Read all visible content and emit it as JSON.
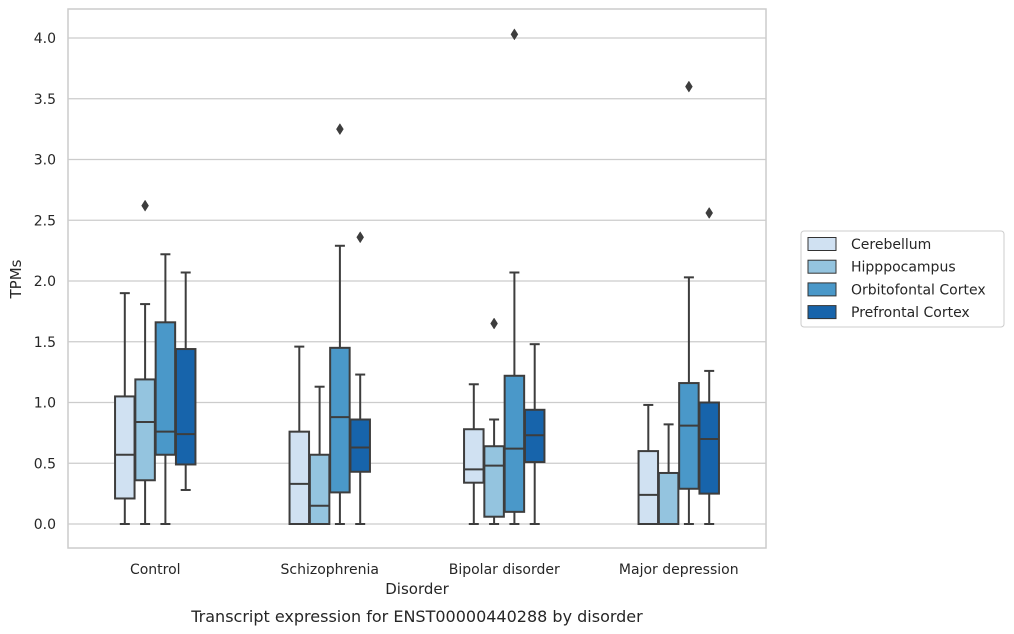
{
  "caption": "Transcript expression for ENST00000440288 by disorder",
  "chart_data": {
    "type": "box",
    "xlabel": "Disorder",
    "ylabel": "TPMs",
    "ylim": [
      -0.2,
      4.25
    ],
    "yticks": [
      "0.0",
      "0.5",
      "1.0",
      "1.5",
      "2.0",
      "2.5",
      "3.0",
      "3.5",
      "4.0"
    ],
    "grid": "horizontal",
    "legend_position": "right",
    "categories": [
      "Control",
      "Schizophrenia",
      "Bipolar disorder",
      "Major depression"
    ],
    "series": [
      {
        "name": "Cerebellum",
        "color": "#d0e1f2",
        "boxes": [
          {
            "whislo": 0.0,
            "q1": 0.21,
            "med": 0.57,
            "q3": 1.05,
            "whishi": 1.9,
            "fliers": []
          },
          {
            "whislo": 0.0,
            "q1": 0.0,
            "med": 0.33,
            "q3": 0.76,
            "whishi": 1.46,
            "fliers": []
          },
          {
            "whislo": 0.0,
            "q1": 0.34,
            "med": 0.45,
            "q3": 0.78,
            "whishi": 1.15,
            "fliers": []
          },
          {
            "whislo": 0.0,
            "q1": 0.0,
            "med": 0.24,
            "q3": 0.6,
            "whishi": 0.98,
            "fliers": []
          }
        ]
      },
      {
        "name": "Hipppocampus",
        "color": "#94c4df",
        "boxes": [
          {
            "whislo": 0.0,
            "q1": 0.36,
            "med": 0.84,
            "q3": 1.19,
            "whishi": 1.81,
            "fliers": [
              2.62
            ]
          },
          {
            "whislo": 0.0,
            "q1": 0.0,
            "med": 0.15,
            "q3": 0.57,
            "whishi": 1.13,
            "fliers": []
          },
          {
            "whislo": 0.0,
            "q1": 0.06,
            "med": 0.48,
            "q3": 0.64,
            "whishi": 0.86,
            "fliers": [
              1.65
            ]
          },
          {
            "whislo": 0.0,
            "q1": 0.0,
            "med": 0.0,
            "q3": 0.42,
            "whishi": 0.82,
            "fliers": []
          }
        ]
      },
      {
        "name": "Orbitofontal Cortex",
        "color": "#4a98c9",
        "boxes": [
          {
            "whislo": 0.0,
            "q1": 0.57,
            "med": 0.76,
            "q3": 1.66,
            "whishi": 2.22,
            "fliers": []
          },
          {
            "whislo": 0.0,
            "q1": 0.26,
            "med": 0.88,
            "q3": 1.45,
            "whishi": 2.29,
            "fliers": [
              3.25
            ]
          },
          {
            "whislo": 0.0,
            "q1": 0.1,
            "med": 0.62,
            "q3": 1.22,
            "whishi": 2.07,
            "fliers": [
              4.03
            ]
          },
          {
            "whislo": 0.0,
            "q1": 0.29,
            "med": 0.81,
            "q3": 1.16,
            "whishi": 2.03,
            "fliers": [
              3.6
            ]
          }
        ]
      },
      {
        "name": "Prefrontal Cortex",
        "color": "#1764ab",
        "boxes": [
          {
            "whislo": 0.28,
            "q1": 0.49,
            "med": 0.74,
            "q3": 1.44,
            "whishi": 2.07,
            "fliers": []
          },
          {
            "whislo": 0.0,
            "q1": 0.43,
            "med": 0.63,
            "q3": 0.86,
            "whishi": 1.23,
            "fliers": [
              2.36
            ]
          },
          {
            "whislo": 0.0,
            "q1": 0.51,
            "med": 0.73,
            "q3": 0.94,
            "whishi": 1.48,
            "fliers": []
          },
          {
            "whislo": 0.0,
            "q1": 0.25,
            "med": 0.7,
            "q3": 1.0,
            "whishi": 1.26,
            "fliers": [
              2.56
            ]
          }
        ]
      }
    ]
  },
  "colors": {
    "grid": "#cccccc",
    "frame": "#cccccc",
    "box_edge": "#3d3d3d",
    "text": "#262626"
  }
}
